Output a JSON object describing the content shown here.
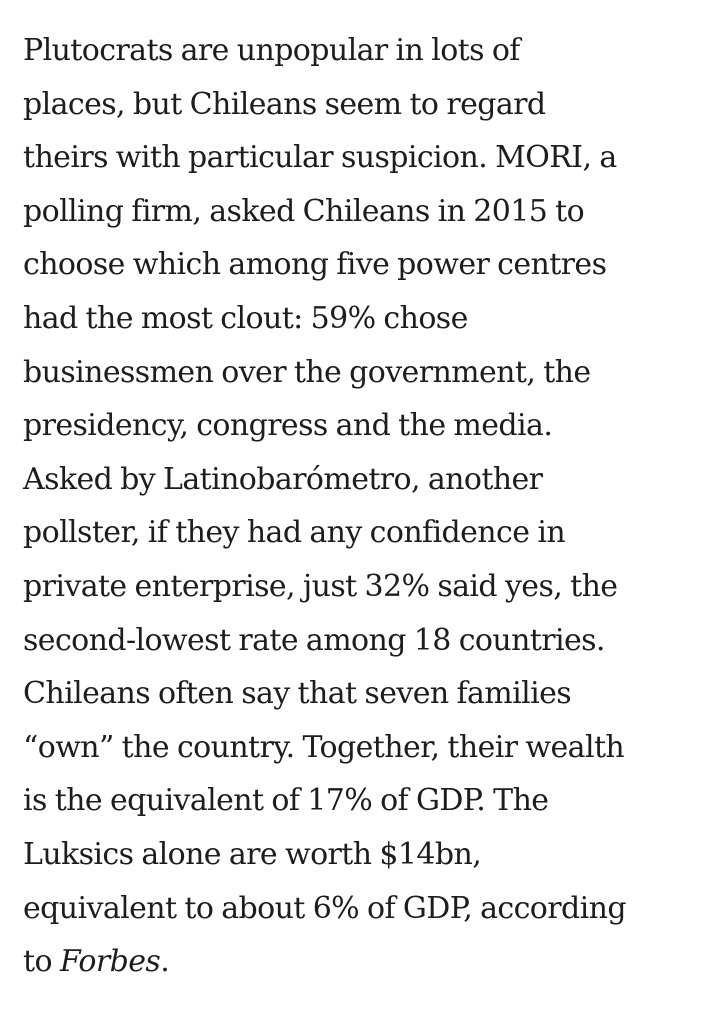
{
  "article": {
    "lines": [
      "Plutocrats are unpopular in lots of",
      "places, but Chileans seem to regard",
      "theirs with particular suspicion. MORI, a",
      "polling firm, asked Chileans in 2015 to",
      "choose which among five power centres",
      "had the most clout: 59% chose",
      "businessmen over the government, the",
      "presidency, congress and the media.",
      "Asked by Latinobarómetro, another",
      "pollster, if they had any confidence in",
      "private enterprise, just 32% said yes, the",
      "second-lowest rate among 18 countries.",
      "Chileans often say that seven families",
      "“own” the country. Together, their wealth",
      "is the equivalent of 17% of GDP. The",
      "Luksics alone are worth $14bn,",
      "equivalent to about 6% of GDP, according"
    ],
    "last_line_prefix": "to ",
    "last_line_italic": "Forbes",
    "last_line_suffix": "."
  }
}
